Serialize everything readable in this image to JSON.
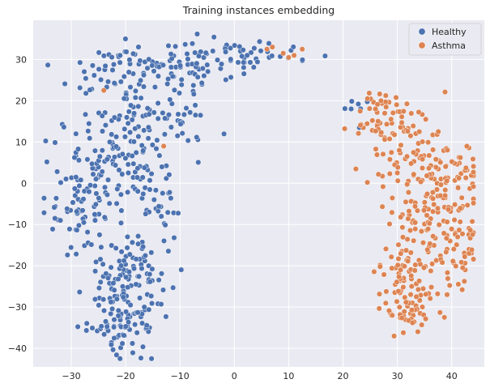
{
  "chart_data": {
    "type": "scatter",
    "title": "Training instances embedding",
    "xlabel": "",
    "ylabel": "",
    "xlim": [
      -37,
      46
    ],
    "ylim": [
      -44.5,
      39.5
    ],
    "xticks": [
      -30,
      -20,
      -10,
      0,
      10,
      20,
      30,
      40
    ],
    "yticks": [
      -40,
      -30,
      -20,
      -10,
      0,
      10,
      20,
      30
    ],
    "xtick_labels": [
      "−30",
      "−20",
      "−10",
      "0",
      "10",
      "20",
      "30",
      "40"
    ],
    "ytick_labels": [
      "−40",
      "−30",
      "−20",
      "−10",
      "0",
      "10",
      "20",
      "30"
    ],
    "grid": true,
    "legend_position": "top-right",
    "series": [
      {
        "name": "Healthy",
        "color": "#4c72b0",
        "regions": [
          {
            "cx": -20,
            "cy": -33,
            "sx": 3.2,
            "sy": 4.5,
            "n": 95
          },
          {
            "cx": -19,
            "cy": -22,
            "sx": 4.5,
            "sy": 4,
            "n": 80
          },
          {
            "cx": -28,
            "cy": -7,
            "sx": 3,
            "sy": 6,
            "n": 55
          },
          {
            "cx": -25,
            "cy": 3,
            "sx": 4,
            "sy": 6,
            "n": 60
          },
          {
            "cx": -16,
            "cy": -3,
            "sx": 3,
            "sy": 6,
            "n": 45
          },
          {
            "cx": -20,
            "cy": 12,
            "sx": 4,
            "sy": 7,
            "n": 70
          },
          {
            "cx": -21,
            "cy": 25,
            "sx": 4,
            "sy": 4,
            "n": 45
          },
          {
            "cx": -10,
            "cy": 18,
            "sx": 3.5,
            "sy": 6,
            "n": 40
          },
          {
            "cx": -9,
            "cy": 28,
            "sx": 4,
            "sy": 3,
            "n": 40
          },
          {
            "cx": 0,
            "cy": 31,
            "sx": 5,
            "sy": 2.5,
            "n": 45
          },
          {
            "cx": -17,
            "cy": 31,
            "sx": 3,
            "sy": 2,
            "n": 15
          },
          {
            "cx": 10,
            "cy": 32,
            "sx": 1.5,
            "sy": 1,
            "n": 6
          },
          {
            "cx": 24,
            "cy": 19,
            "sx": 1.5,
            "sy": 1.5,
            "n": 5
          }
        ],
        "points": [
          [
            -33,
            -8.5
          ],
          [
            -32,
            -9
          ],
          [
            21.5,
            18
          ],
          [
            23,
            13.5
          ]
        ]
      },
      {
        "name": "Asthma",
        "color": "#dd8452",
        "regions": [
          {
            "cx": 28,
            "cy": 13,
            "sx": 3,
            "sy": 4,
            "n": 45
          },
          {
            "cx": 32,
            "cy": 3,
            "sx": 3.5,
            "sy": 5,
            "n": 55
          },
          {
            "cx": 38,
            "cy": 6,
            "sx": 3,
            "sy": 4,
            "n": 30
          },
          {
            "cx": 41,
            "cy": -2,
            "sx": 3,
            "sy": 4,
            "n": 45
          },
          {
            "cx": 36,
            "cy": -10,
            "sx": 3.5,
            "sy": 5,
            "n": 45
          },
          {
            "cx": 31,
            "cy": -22,
            "sx": 3,
            "sy": 5,
            "n": 70
          },
          {
            "cx": 33,
            "cy": -30,
            "sx": 3,
            "sy": 3,
            "n": 45
          },
          {
            "cx": 41,
            "cy": -16,
            "sx": 2.5,
            "sy": 5,
            "n": 40
          },
          {
            "cx": 30,
            "cy": 18,
            "sx": 3.5,
            "sy": 2,
            "n": 20
          }
        ],
        "points": [
          [
            -24,
            22.5
          ],
          [
            -13,
            9
          ],
          [
            7,
            33
          ],
          [
            9,
            31.5
          ],
          [
            12.5,
            32.5
          ],
          [
            11,
            31
          ],
          [
            10,
            30.5
          ],
          [
            6,
            32.5
          ],
          [
            27,
            20
          ],
          [
            24.5,
            20.5
          ]
        ]
      }
    ]
  }
}
